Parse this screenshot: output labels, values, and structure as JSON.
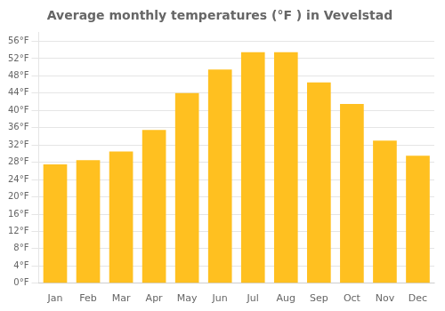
{
  "chart_data": {
    "type": "bar",
    "title": "Average monthly temperatures (°F ) in Vevelstad",
    "categories": [
      "Jan",
      "Feb",
      "Mar",
      "Apr",
      "May",
      "Jun",
      "Jul",
      "Aug",
      "Sep",
      "Oct",
      "Nov",
      "Dec"
    ],
    "values": [
      27.5,
      28.5,
      30.5,
      35.5,
      44.0,
      49.5,
      53.5,
      53.5,
      46.5,
      41.5,
      33.0,
      29.5
    ],
    "color": "#FFC020",
    "ylim": [
      0,
      58
    ],
    "yticks": [
      {
        "value": 0,
        "label": "0°F"
      },
      {
        "value": 4,
        "label": "4°F"
      },
      {
        "value": 8,
        "label": "8°F"
      },
      {
        "value": 12,
        "label": "12°F"
      },
      {
        "value": 16,
        "label": "16°F"
      },
      {
        "value": 20,
        "label": "20°F"
      },
      {
        "value": 24,
        "label": "24°F"
      },
      {
        "value": 28,
        "label": "28°F"
      },
      {
        "value": 32,
        "label": "32°F"
      },
      {
        "value": 36,
        "label": "36°F"
      },
      {
        "value": 40,
        "label": "40°F"
      },
      {
        "value": 44,
        "label": "44°F"
      },
      {
        "value": 48,
        "label": "48°F"
      },
      {
        "value": 52,
        "label": "52°F"
      },
      {
        "value": 56,
        "label": "56°F"
      }
    ],
    "grid": true
  }
}
